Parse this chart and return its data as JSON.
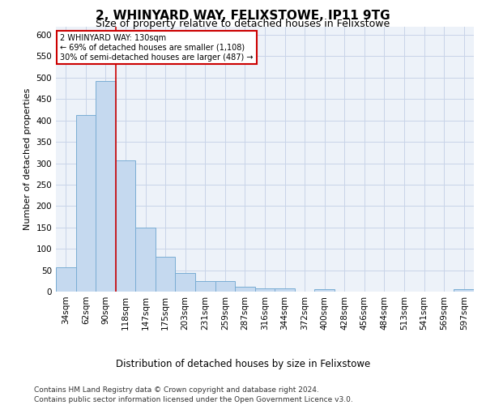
{
  "title": "2, WHINYARD WAY, FELIXSTOWE, IP11 9TG",
  "subtitle": "Size of property relative to detached houses in Felixstowe",
  "xlabel": "Distribution of detached houses by size in Felixstowe",
  "ylabel": "Number of detached properties",
  "footer_line1": "Contains HM Land Registry data © Crown copyright and database right 2024.",
  "footer_line2": "Contains public sector information licensed under the Open Government Licence v3.0.",
  "categories": [
    "34sqm",
    "62sqm",
    "90sqm",
    "118sqm",
    "147sqm",
    "175sqm",
    "203sqm",
    "231sqm",
    "259sqm",
    "287sqm",
    "316sqm",
    "344sqm",
    "372sqm",
    "400sqm",
    "428sqm",
    "456sqm",
    "484sqm",
    "513sqm",
    "541sqm",
    "569sqm",
    "597sqm"
  ],
  "values": [
    57,
    412,
    493,
    307,
    149,
    82,
    44,
    25,
    25,
    11,
    8,
    8,
    0,
    5,
    0,
    0,
    0,
    0,
    0,
    0,
    5
  ],
  "bar_color": "#c5d9ef",
  "bar_edge_color": "#7aadd4",
  "grid_color": "#c8d4e8",
  "bg_color": "#edf2f9",
  "vline_x_index": 2.5,
  "vline_color": "#cc0000",
  "annotation_text": "2 WHINYARD WAY: 130sqm\n← 69% of detached houses are smaller (1,108)\n30% of semi-detached houses are larger (487) →",
  "annotation_box_color": "#ffffff",
  "annotation_box_edge_color": "#cc0000",
  "ylim": [
    0,
    620
  ],
  "yticks": [
    0,
    50,
    100,
    150,
    200,
    250,
    300,
    350,
    400,
    450,
    500,
    550,
    600
  ],
  "title_fontsize": 11,
  "subtitle_fontsize": 9,
  "tick_fontsize": 7.5,
  "ylabel_fontsize": 8,
  "xlabel_fontsize": 8.5,
  "annotation_fontsize": 7,
  "footer_fontsize": 6.5
}
